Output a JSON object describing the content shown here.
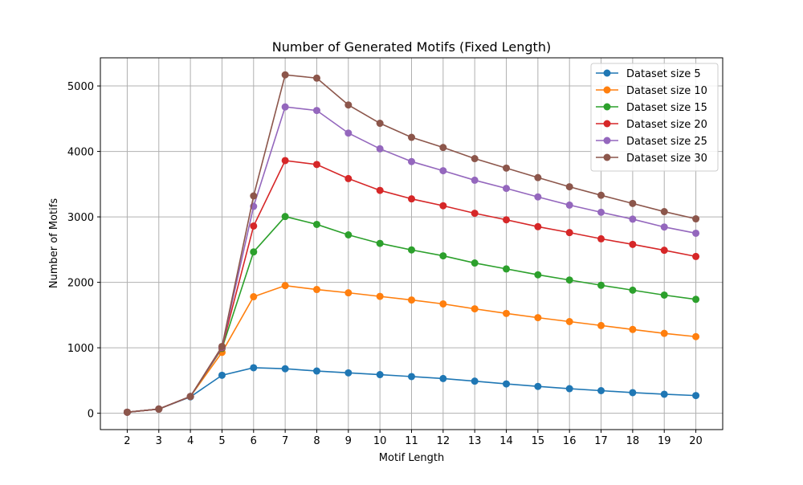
{
  "chart_data": {
    "type": "line",
    "title": "Number of Generated Motifs (Fixed Length)",
    "xlabel": "Motif Length",
    "ylabel": "Number of Motifs",
    "x": [
      2,
      3,
      4,
      5,
      6,
      7,
      8,
      9,
      10,
      11,
      12,
      13,
      14,
      15,
      16,
      17,
      18,
      19,
      20
    ],
    "xlim": [
      1.15,
      20.85
    ],
    "ylim": [
      -250,
      5430
    ],
    "yticks": [
      0,
      1000,
      2000,
      3000,
      4000,
      5000
    ],
    "grid": true,
    "legend_position": "top-right",
    "series": [
      {
        "name": "Dataset size 5",
        "color": "#1f77b4",
        "values": [
          16,
          64,
          250,
          580,
          695,
          680,
          645,
          617,
          590,
          560,
          530,
          490,
          448,
          410,
          375,
          345,
          315,
          290,
          270
        ]
      },
      {
        "name": "Dataset size 10",
        "color": "#ff7f0e",
        "values": [
          16,
          64,
          256,
          930,
          1780,
          1950,
          1890,
          1840,
          1785,
          1730,
          1670,
          1595,
          1525,
          1460,
          1400,
          1340,
          1280,
          1220,
          1170
        ]
      },
      {
        "name": "Dataset size 15",
        "color": "#2ca02c",
        "values": [
          16,
          64,
          256,
          990,
          2465,
          3005,
          2885,
          2725,
          2595,
          2495,
          2405,
          2295,
          2205,
          2115,
          2035,
          1955,
          1880,
          1805,
          1740
        ]
      },
      {
        "name": "Dataset size 20",
        "color": "#d62728",
        "values": [
          16,
          64,
          256,
          1000,
          2860,
          3860,
          3800,
          3585,
          3405,
          3275,
          3170,
          3055,
          2955,
          2850,
          2760,
          2665,
          2580,
          2490,
          2395
        ]
      },
      {
        "name": "Dataset size 25",
        "color": "#9467bd",
        "values": [
          16,
          64,
          256,
          1010,
          3160,
          4680,
          4625,
          4280,
          4040,
          3845,
          3705,
          3560,
          3435,
          3305,
          3180,
          3070,
          2965,
          2845,
          2750
        ]
      },
      {
        "name": "Dataset size 30",
        "color": "#8c564b",
        "values": [
          16,
          64,
          256,
          1020,
          3320,
          5170,
          5120,
          4710,
          4430,
          4215,
          4060,
          3890,
          3745,
          3600,
          3460,
          3330,
          3205,
          3080,
          2970
        ]
      }
    ]
  }
}
